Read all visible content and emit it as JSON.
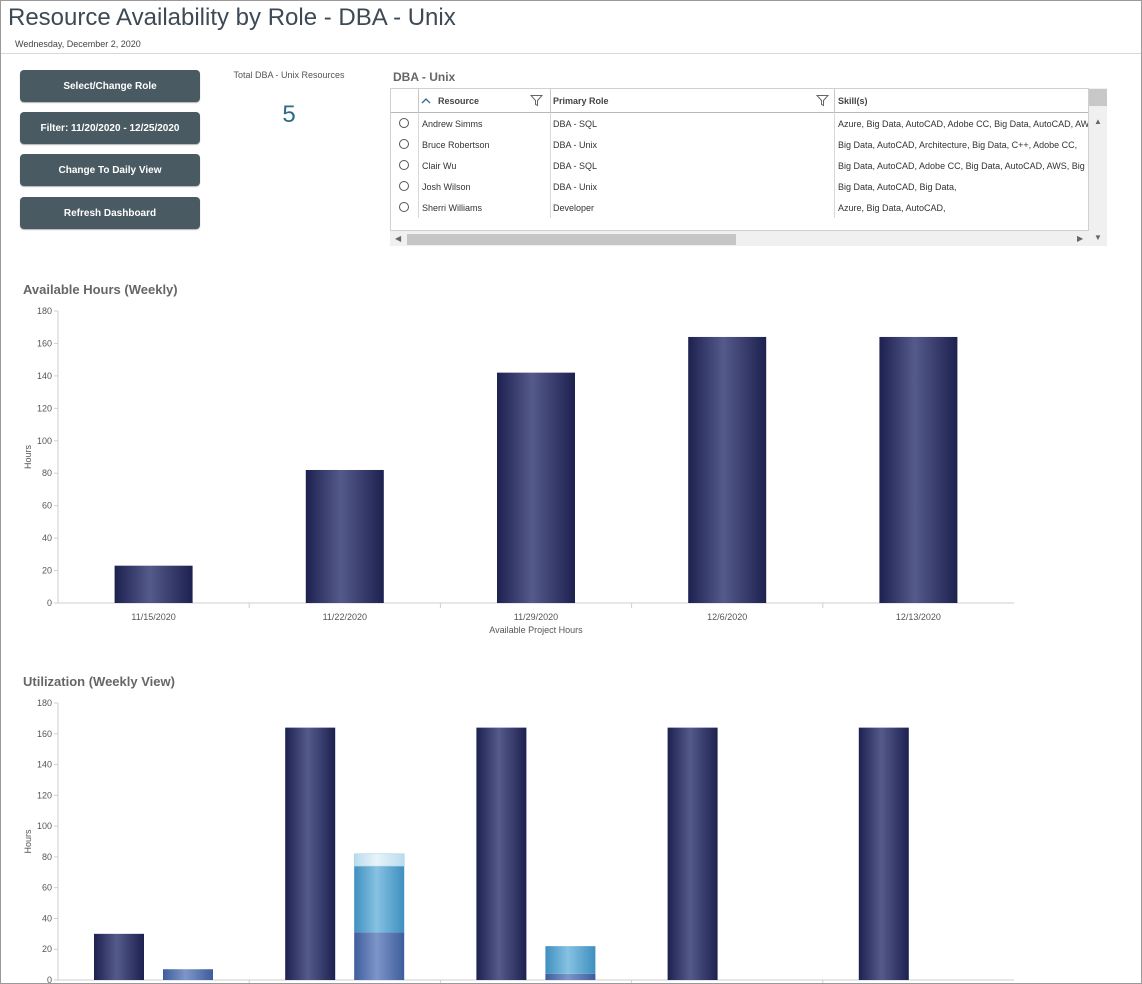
{
  "header": {
    "title": "Resource Availability by Role - DBA - Unix",
    "date": "Wednesday, December 2, 2020"
  },
  "buttons": {
    "select_role": "Select/Change Role",
    "filter": "Filter: 11/20/2020 - 12/25/2020",
    "daily_view": "Change To Daily View",
    "refresh": "Refresh Dashboard"
  },
  "kpi": {
    "label": "Total DBA - Unix Resources",
    "value": "5"
  },
  "grid": {
    "title": "DBA - Unix",
    "columns": {
      "resource": "Resource",
      "primary_role": "Primary Role",
      "skills": "Skill(s)"
    },
    "rows": [
      {
        "resource": "Andrew Simms",
        "role": "DBA - SQL",
        "skills": "Azure, Big Data, AutoCAD, Adobe CC, Big Data, AutoCAD, AWS, A"
      },
      {
        "resource": "Bruce Robertson",
        "role": "DBA - Unix",
        "skills": "Big Data, AutoCAD, Architecture, Big Data, C++, Adobe CC,"
      },
      {
        "resource": "Clair Wu",
        "role": "DBA - SQL",
        "skills": "Big Data, AutoCAD, Adobe CC, Big Data, AutoCAD, AWS, Big Data"
      },
      {
        "resource": "Josh Wilson",
        "role": "DBA - Unix",
        "skills": "Big Data, AutoCAD, Big Data,"
      },
      {
        "resource": "Sherri Williams",
        "role": "Developer",
        "skills": "Azure, Big Data, AutoCAD,"
      }
    ]
  },
  "chart_data": [
    {
      "type": "bar",
      "title": "Available Hours (Weekly)",
      "xlabel": "Available Project Hours",
      "ylabel": "Hours",
      "ylim": [
        0,
        180
      ],
      "yticks": [
        "0",
        "20",
        "40",
        "60",
        "80",
        "100",
        "120",
        "140",
        "160",
        "180"
      ],
      "categories": [
        "11/15/2020",
        "11/22/2020",
        "11/29/2020",
        "12/6/2020",
        "12/13/2020"
      ],
      "values": [
        23,
        82,
        142,
        164,
        164
      ],
      "color": "#2b2f5e"
    },
    {
      "type": "bar",
      "title": "Utilization (Weekly View)",
      "ylabel": "Hours",
      "ylim": [
        0,
        180
      ],
      "yticks": [
        "0",
        "20",
        "40",
        "60",
        "80",
        "100",
        "120",
        "140",
        "160",
        "180"
      ],
      "groups": [
        {
          "available": 30,
          "stack": [
            7
          ]
        },
        {
          "available": 164,
          "stack": [
            31,
            43,
            8
          ]
        },
        {
          "available": 164,
          "stack": [
            4,
            18
          ]
        },
        {
          "available": 164,
          "stack": []
        },
        {
          "available": 164,
          "stack": []
        }
      ],
      "colors": {
        "available": "#2b2f5e",
        "stack": [
          "#4f6fae",
          "#5aa5d0",
          "#cde6f2"
        ]
      }
    }
  ]
}
